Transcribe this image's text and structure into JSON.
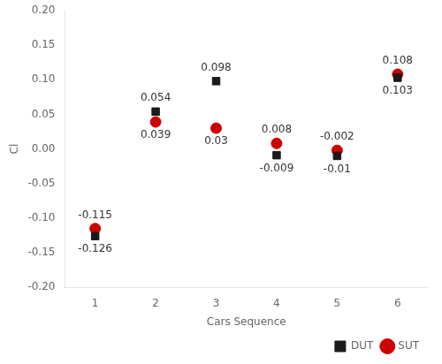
{
  "chart_data": {
    "type": "scatter",
    "xlabel": "Cars Sequence",
    "ylabel": "Cl",
    "x": [
      1,
      2,
      3,
      4,
      5,
      6
    ],
    "series": [
      {
        "name": "DUT",
        "color": "#1a1a1a",
        "marker": "square",
        "values": [
          -0.126,
          0.054,
          0.098,
          -0.009,
          -0.01,
          0.103
        ]
      },
      {
        "name": "SUT",
        "color": "#cc0000",
        "marker": "circle",
        "values": [
          -0.115,
          0.039,
          0.03,
          0.008,
          -0.002,
          0.108
        ]
      }
    ],
    "xlim": [
      0.5,
      6.5
    ],
    "xticks": [
      1,
      2,
      3,
      4,
      5,
      6
    ],
    "ylim": [
      -0.2,
      0.2
    ],
    "yticks": [
      {
        "value": -0.2,
        "label": "-0.20"
      },
      -0.15,
      {
        "value": -0.1,
        "label": "-0.10"
      },
      -0.05,
      {
        "value": 0,
        "label": "0.00"
      },
      0.05,
      {
        "value": 0.1,
        "label": "0.10"
      },
      0.15,
      {
        "value": 0.2,
        "label": "0.20"
      }
    ],
    "grid": false,
    "legend": "lower right",
    "data_labels": true
  }
}
